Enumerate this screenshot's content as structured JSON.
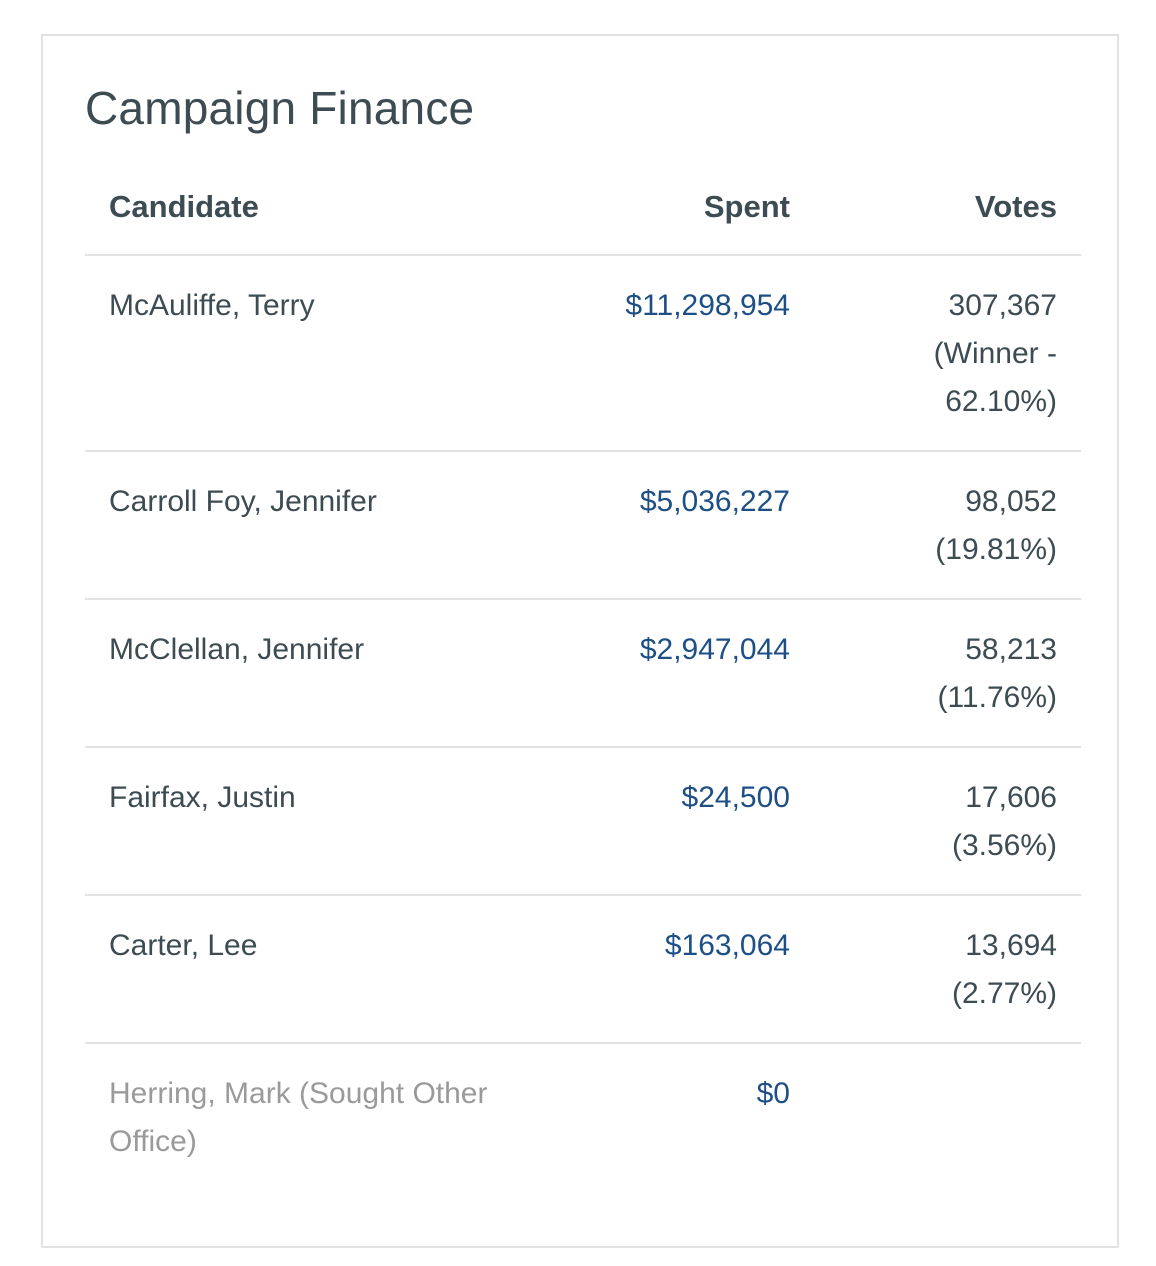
{
  "title": "Campaign Finance",
  "headers": {
    "candidate": "Candidate",
    "spent": "Spent",
    "votes": "Votes"
  },
  "rows": [
    {
      "candidate": "McAuliffe, Terry",
      "spent": "$11,298,954",
      "votes": "307,367",
      "votes_note": "(Winner - 62.10%)"
    },
    {
      "candidate": "Carroll Foy, Jennifer",
      "spent": "$5,036,227",
      "votes": "98,052",
      "votes_note": "(19.81%)"
    },
    {
      "candidate": "McClellan, Jennifer",
      "spent": "$2,947,044",
      "votes": "58,213",
      "votes_note": "(11.76%)"
    },
    {
      "candidate": "Fairfax, Justin",
      "spent": "$24,500",
      "votes": "17,606",
      "votes_note": "(3.56%)"
    },
    {
      "candidate": "Carter, Lee",
      "spent": "$163,064",
      "votes": "13,694",
      "votes_note": "(2.77%)"
    },
    {
      "candidate": "Herring, Mark (Sought Other Office)",
      "spent": "$0",
      "votes": "",
      "votes_note": ""
    }
  ],
  "colors": {
    "text": "#3d4b52",
    "link": "#1d4f86",
    "muted": "#9a9a9a",
    "border": "#e2e2e2"
  }
}
